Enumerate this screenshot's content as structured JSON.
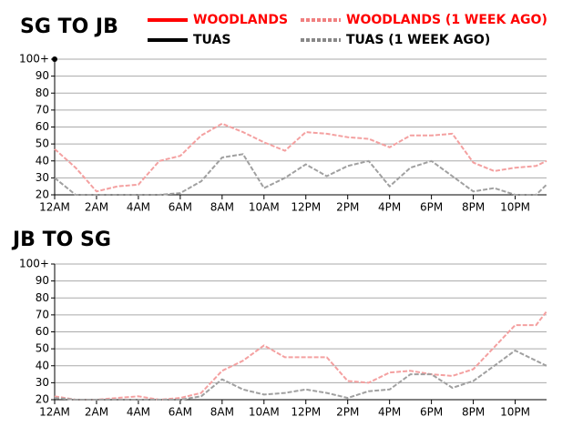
{
  "chart_data": [
    {
      "type": "line",
      "title": "SG TO JB",
      "x": [
        0,
        1,
        2,
        3,
        4,
        5,
        6,
        7,
        8,
        9,
        10,
        11,
        12,
        13,
        14,
        15,
        16,
        17,
        18,
        19,
        20,
        21,
        22,
        23,
        23.5
      ],
      "xlim": [
        0,
        23.5
      ],
      "xticks": [
        {
          "value": 0,
          "label": "12AM"
        },
        {
          "value": 2,
          "label": "2AM"
        },
        {
          "value": 4,
          "label": "4AM"
        },
        {
          "value": 6,
          "label": "6AM"
        },
        {
          "value": 8,
          "label": "8AM"
        },
        {
          "value": 10,
          "label": "10AM"
        },
        {
          "value": 12,
          "label": "12PM"
        },
        {
          "value": 14,
          "label": "2PM"
        },
        {
          "value": 16,
          "label": "4PM"
        },
        {
          "value": 18,
          "label": "6PM"
        },
        {
          "value": 20,
          "label": "8PM"
        },
        {
          "value": 22,
          "label": "10PM"
        }
      ],
      "ylim": [
        20,
        100
      ],
      "yticks": [
        20,
        30,
        40,
        50,
        60,
        70,
        80,
        90,
        {
          "value": 100,
          "label": "100+"
        }
      ],
      "grid": true,
      "series": [
        {
          "name": "WOODLANDS",
          "color": "#ff0000",
          "label_color": "#ff0000",
          "dashed": false,
          "values": [
            null,
            null,
            null,
            null,
            null,
            null,
            null,
            null,
            null,
            null,
            null,
            null,
            null,
            null,
            null,
            null,
            null,
            null,
            null,
            null,
            null,
            null,
            null,
            null,
            null
          ]
        },
        {
          "name": "WOODLANDS (1 WEEK AGO)",
          "color": "#f4a0a0",
          "label_color": "#ff0000",
          "dashed": true,
          "values": [
            47,
            36,
            22,
            25,
            26,
            40,
            43,
            55,
            62,
            57,
            51,
            46,
            57,
            56,
            54,
            53,
            48,
            55,
            55,
            56,
            39,
            34,
            36,
            37,
            40
          ]
        },
        {
          "name": "TUAS",
          "color": "#000000",
          "label_color": "#000000",
          "dashed": false,
          "values": [
            100,
            null,
            null,
            null,
            null,
            null,
            null,
            null,
            null,
            null,
            null,
            null,
            null,
            null,
            null,
            null,
            null,
            null,
            null,
            null,
            null,
            null,
            null,
            null,
            null
          ]
        },
        {
          "name": "TUAS (1 WEEK AGO)",
          "color": "#a0a0a0",
          "label_color": "#000000",
          "dashed": true,
          "values": [
            30,
            20,
            20,
            20,
            20,
            20,
            21,
            28,
            42,
            44,
            24,
            30,
            38,
            31,
            37,
            40,
            25,
            36,
            40,
            31,
            22,
            24,
            20,
            20,
            26
          ]
        }
      ]
    },
    {
      "type": "line",
      "title": "JB TO SG",
      "x": [
        0,
        1,
        2,
        3,
        4,
        5,
        6,
        7,
        8,
        9,
        10,
        11,
        12,
        13,
        14,
        15,
        16,
        17,
        18,
        19,
        20,
        21,
        22,
        23,
        23.5
      ],
      "xlim": [
        0,
        23.5
      ],
      "xticks": [
        {
          "value": 0,
          "label": "12AM"
        },
        {
          "value": 2,
          "label": "2AM"
        },
        {
          "value": 4,
          "label": "4AM"
        },
        {
          "value": 6,
          "label": "6AM"
        },
        {
          "value": 8,
          "label": "8AM"
        },
        {
          "value": 10,
          "label": "10AM"
        },
        {
          "value": 12,
          "label": "12PM"
        },
        {
          "value": 14,
          "label": "2PM"
        },
        {
          "value": 16,
          "label": "4PM"
        },
        {
          "value": 18,
          "label": "6PM"
        },
        {
          "value": 20,
          "label": "8PM"
        },
        {
          "value": 22,
          "label": "10PM"
        }
      ],
      "ylim": [
        20,
        100
      ],
      "yticks": [
        20,
        30,
        40,
        50,
        60,
        70,
        80,
        90,
        {
          "value": 100,
          "label": "100+"
        }
      ],
      "grid": true,
      "series": [
        {
          "color": "#f4a0a0",
          "dashed": true,
          "values": [
            22,
            20,
            20,
            21,
            22,
            20,
            21,
            24,
            37,
            43,
            52,
            45,
            45,
            45,
            31,
            30,
            36,
            37,
            35,
            34,
            38,
            51,
            64,
            64,
            72
          ]
        },
        {
          "color": "#a0a0a0",
          "dashed": true,
          "values": [
            21,
            20,
            20,
            20,
            20,
            20,
            20,
            22,
            32,
            26,
            23,
            24,
            26,
            24,
            21,
            25,
            26,
            35,
            35,
            27,
            31,
            40,
            49,
            43,
            40
          ]
        }
      ]
    }
  ]
}
